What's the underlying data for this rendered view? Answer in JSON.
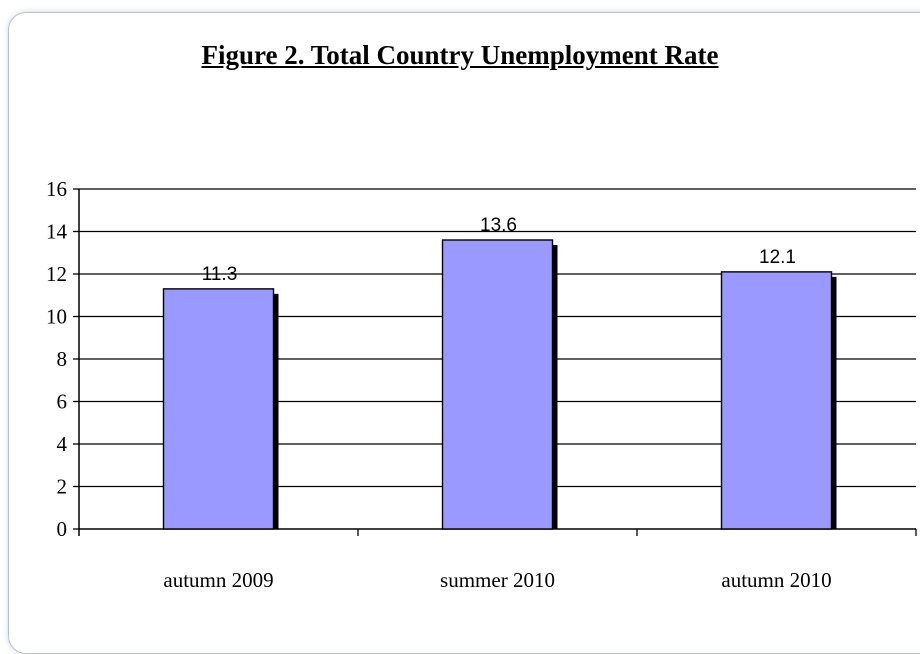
{
  "chart_data": {
    "type": "bar",
    "title": "Figure 2. Total Country Unemployment Rate",
    "categories": [
      "autumn 2009",
      "summer 2010",
      "autumn 2010"
    ],
    "values": [
      11.3,
      13.6,
      12.1
    ],
    "data_labels": [
      "11.3",
      "13.6",
      "12.1"
    ],
    "xlabel": "",
    "ylabel": "",
    "ylim": [
      0,
      16
    ],
    "yticks": [
      0,
      2,
      4,
      6,
      8,
      10,
      12,
      14,
      16
    ],
    "grid": true,
    "legend": "none",
    "bar_color": "#9999ff",
    "bar_border_color": "#000000",
    "grid_color": "#000000"
  }
}
